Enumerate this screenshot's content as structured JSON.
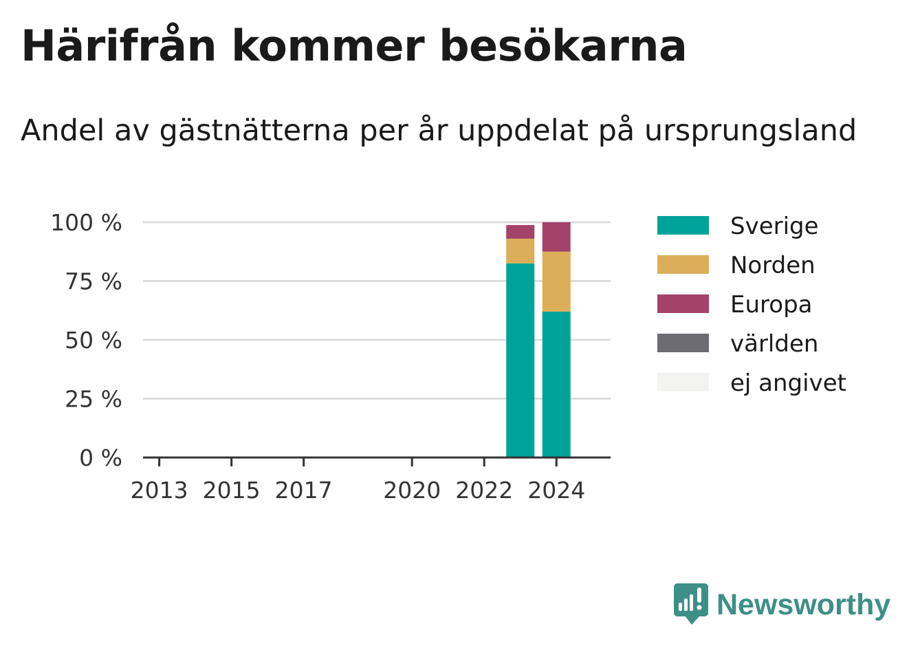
{
  "chart_data": {
    "type": "bar",
    "stacked": true,
    "title": "Härifrån kommer besökarna",
    "subtitle": "Andel av gästnätterna per år uppdelat på ursprungsland",
    "xlabel": "",
    "ylabel": "",
    "x": [
      2013,
      2014,
      2015,
      2016,
      2017,
      2018,
      2019,
      2020,
      2021,
      2022,
      2023,
      2024
    ],
    "xticks": [
      "2013",
      "2015",
      "2017",
      "2020",
      "2022",
      "2024"
    ],
    "ylim": [
      0,
      100
    ],
    "yticks": [
      "0 %",
      "25 %",
      "50 %",
      "75 %",
      "100 %"
    ],
    "grid": true,
    "legend_position": "right",
    "series": [
      {
        "name": "Sverige",
        "color": "#00a39a",
        "values": [
          null,
          null,
          null,
          null,
          null,
          null,
          null,
          null,
          null,
          null,
          82.5,
          62
        ]
      },
      {
        "name": "Norden",
        "color": "#dcae5a",
        "values": [
          null,
          null,
          null,
          null,
          null,
          null,
          null,
          null,
          null,
          null,
          10.5,
          25.5
        ]
      },
      {
        "name": "Europa",
        "color": "#a5426a",
        "values": [
          null,
          null,
          null,
          null,
          null,
          null,
          null,
          null,
          null,
          null,
          5.8,
          12.5
        ]
      },
      {
        "name": "världen",
        "color": "#6d6c71",
        "values": [
          null,
          null,
          null,
          null,
          null,
          null,
          null,
          null,
          null,
          null,
          0,
          0
        ]
      },
      {
        "name": "ej angivet",
        "color": "#f3f3f2",
        "values": [
          null,
          null,
          null,
          null,
          null,
          null,
          null,
          null,
          null,
          null,
          0,
          0
        ]
      }
    ]
  },
  "branding": {
    "logo_text": "Newsworthy",
    "logo_icon": "bar-chart-speech-bubble-icon",
    "logo_color": "#3d8f87"
  }
}
